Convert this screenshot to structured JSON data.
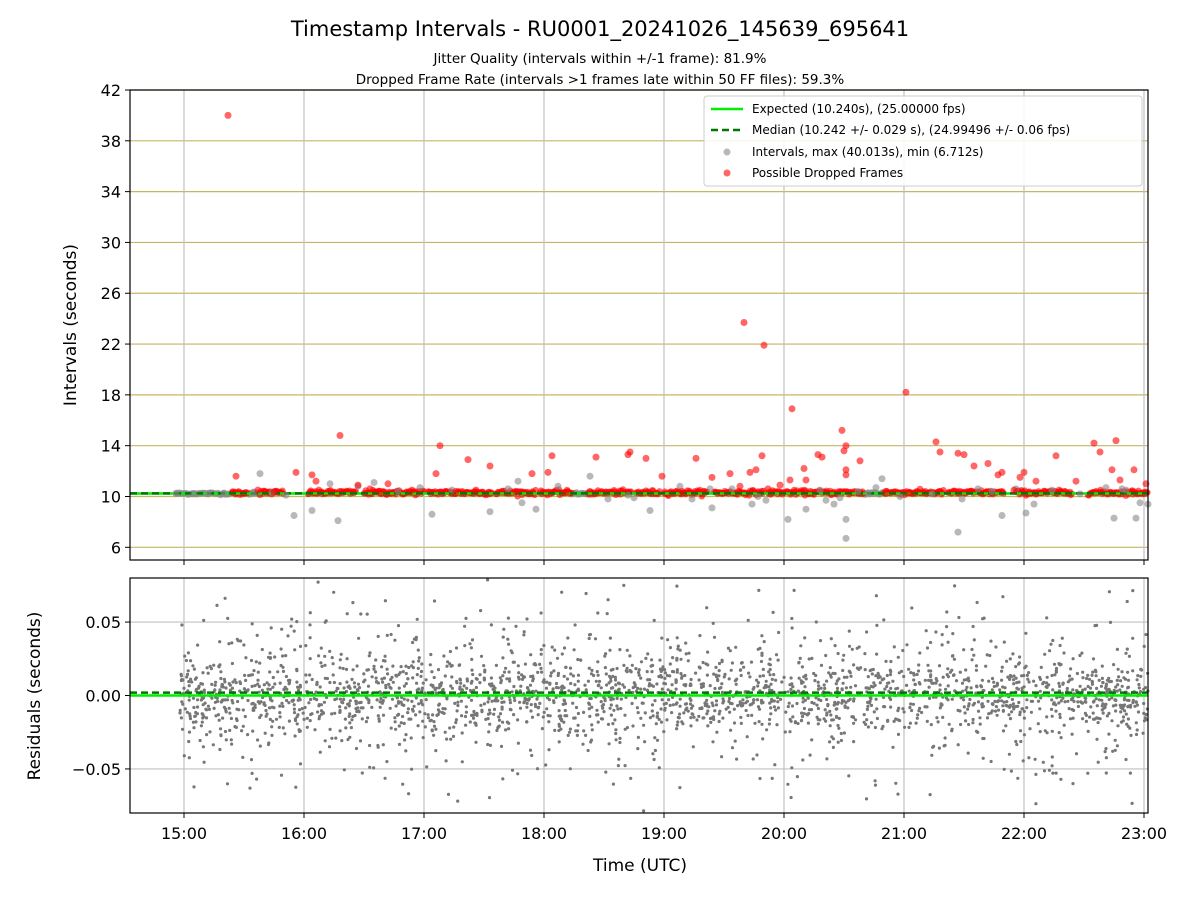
{
  "chart_data": [
    {
      "type": "scatter",
      "panel": "top",
      "title": "Timestamp Intervals - RU0001_20241026_145639_695641",
      "subtitle_lines": [
        "Jitter Quality (intervals within +/-1 frame): 81.9%",
        "Dropped Frame Rate (intervals >1 frames late within 50 FF files): 59.3%"
      ],
      "ylabel": "Intervals (seconds)",
      "xlim": [
        "14:33",
        "23:02"
      ],
      "ylim": [
        5.0,
        42.0
      ],
      "yticks": [
        6,
        10,
        14,
        18,
        22,
        26,
        30,
        34,
        38,
        42
      ],
      "xticks": [
        "15:00",
        "16:00",
        "17:00",
        "18:00",
        "19:00",
        "20:00",
        "21:00",
        "22:00",
        "23:00"
      ],
      "grid": true,
      "legend_position": "top-right",
      "legend": [
        "Expected (10.240s), (25.00000 fps)",
        "Median (10.242 +/- 0.029 s), (24.99496 +/- 0.06 fps)",
        "Intervals, max (40.013s), min (6.712s)",
        "Possible Dropped Frames"
      ],
      "expected_interval": 10.24,
      "median_interval": 10.242,
      "colors": {
        "expected": "#00ee00",
        "median": "#007700",
        "intervals": "#888888",
        "dropped": "#ff0000",
        "hgrid": "#c8b464",
        "vgrid": "#c0c0c0"
      },
      "series": [
        {
          "name": "Intervals, max (40.013s), min (6.712s)",
          "points": [
            [
              "14:56",
              10.24
            ],
            [
              "15:05",
              10.24
            ],
            [
              "15:12",
              10.24
            ],
            [
              "15:20",
              10.24
            ],
            [
              "15:35",
              10.35
            ],
            [
              "15:38",
              11.8
            ],
            [
              "15:44",
              10.3
            ],
            [
              "15:51",
              10.1
            ],
            [
              "15:55",
              8.5
            ],
            [
              "16:04",
              8.9
            ],
            [
              "16:13",
              11.0
            ],
            [
              "16:17",
              8.1
            ],
            [
              "16:27",
              10.8
            ],
            [
              "16:35",
              11.1
            ],
            [
              "16:47",
              10.4
            ],
            [
              "16:58",
              10.7
            ],
            [
              "17:04",
              8.6
            ],
            [
              "17:14",
              10.5
            ],
            [
              "17:33",
              8.8
            ],
            [
              "17:42",
              10.6
            ],
            [
              "17:47",
              11.2
            ],
            [
              "17:49",
              9.5
            ],
            [
              "17:56",
              9.0
            ],
            [
              "18:07",
              10.8
            ],
            [
              "18:23",
              11.6
            ],
            [
              "18:32",
              9.8
            ],
            [
              "18:42",
              10.1
            ],
            [
              "18:45",
              9.9
            ],
            [
              "18:53",
              8.9
            ],
            [
              "19:08",
              10.8
            ],
            [
              "19:14",
              9.8
            ],
            [
              "19:23",
              10.6
            ],
            [
              "19:24",
              9.1
            ],
            [
              "19:34",
              10.6
            ],
            [
              "19:44",
              9.4
            ],
            [
              "19:47",
              10.0
            ],
            [
              "19:51",
              9.7
            ],
            [
              "20:02",
              8.2
            ],
            [
              "20:11",
              9.0
            ],
            [
              "20:18",
              10.5
            ],
            [
              "20:21",
              9.7
            ],
            [
              "20:25",
              9.4
            ],
            [
              "20:28",
              9.9
            ],
            [
              "20:31",
              8.2
            ],
            [
              "20:31",
              6.7
            ],
            [
              "20:37",
              10.4
            ],
            [
              "20:42",
              10.3
            ],
            [
              "20:46",
              10.7
            ],
            [
              "20:49",
              11.4
            ],
            [
              "20:58",
              10.0
            ],
            [
              "21:14",
              10.2
            ],
            [
              "21:27",
              7.2
            ],
            [
              "21:29",
              9.8
            ],
            [
              "21:37",
              10.6
            ],
            [
              "21:44",
              10.4
            ],
            [
              "21:49",
              8.5
            ],
            [
              "21:56",
              10.6
            ],
            [
              "22:01",
              8.7
            ],
            [
              "22:05",
              9.4
            ],
            [
              "22:14",
              10.5
            ],
            [
              "22:28",
              10.2
            ],
            [
              "22:41",
              10.7
            ],
            [
              "22:45",
              8.3
            ],
            [
              "22:49",
              10.6
            ],
            [
              "22:51",
              10.5
            ],
            [
              "22:56",
              8.3
            ],
            [
              "22:58",
              9.5
            ],
            [
              "23:02",
              9.4
            ]
          ]
        },
        {
          "name": "Possible Dropped Frames",
          "points": [
            [
              "15:22",
              40.0
            ],
            [
              "15:26",
              11.6
            ],
            [
              "15:37",
              10.5
            ],
            [
              "15:45",
              10.3
            ],
            [
              "15:56",
              11.9
            ],
            [
              "16:04",
              11.7
            ],
            [
              "16:06",
              11.2
            ],
            [
              "16:18",
              14.8
            ],
            [
              "16:27",
              10.9
            ],
            [
              "16:33",
              10.6
            ],
            [
              "16:38",
              10.4
            ],
            [
              "16:42",
              11.0
            ],
            [
              "16:54",
              10.5
            ],
            [
              "17:06",
              11.8
            ],
            [
              "17:08",
              14.0
            ],
            [
              "17:16",
              10.4
            ],
            [
              "17:22",
              12.9
            ],
            [
              "17:26",
              10.5
            ],
            [
              "17:33",
              12.4
            ],
            [
              "17:46",
              10.4
            ],
            [
              "17:54",
              11.8
            ],
            [
              "18:02",
              11.9
            ],
            [
              "18:04",
              13.2
            ],
            [
              "18:11",
              10.3
            ],
            [
              "18:26",
              13.1
            ],
            [
              "18:42",
              13.3
            ],
            [
              "18:43",
              13.5
            ],
            [
              "18:51",
              13.0
            ],
            [
              "18:59",
              11.6
            ],
            [
              "19:09",
              10.4
            ],
            [
              "19:16",
              13.0
            ],
            [
              "19:24",
              11.5
            ],
            [
              "19:33",
              11.8
            ],
            [
              "19:38",
              10.8
            ],
            [
              "19:43",
              11.9
            ],
            [
              "19:46",
              12.1
            ],
            [
              "19:49",
              13.2
            ],
            [
              "19:52",
              10.6
            ],
            [
              "19:58",
              10.9
            ],
            [
              "20:03",
              11.3
            ],
            [
              "20:10",
              12.2
            ],
            [
              "20:11",
              11.3
            ],
            [
              "20:17",
              13.3
            ],
            [
              "20:19",
              13.1
            ],
            [
              "20:31",
              11.7
            ],
            [
              "20:31",
              12.1
            ],
            [
              "20:38",
              12.8
            ],
            [
              "20:51",
              10.4
            ],
            [
              "21:03",
              10.3
            ],
            [
              "21:16",
              14.3
            ],
            [
              "21:18",
              13.5
            ],
            [
              "21:27",
              13.4
            ],
            [
              "21:30",
              13.3
            ],
            [
              "21:35",
              12.4
            ],
            [
              "21:42",
              12.6
            ],
            [
              "21:47",
              11.7
            ],
            [
              "21:49",
              11.9
            ],
            [
              "21:55",
              10.5
            ],
            [
              "21:58",
              11.5
            ],
            [
              "22:00",
              11.9
            ],
            [
              "22:06",
              11.2
            ],
            [
              "22:16",
              13.2
            ],
            [
              "22:26",
              11.2
            ],
            [
              "22:35",
              14.2
            ],
            [
              "22:38",
              13.5
            ],
            [
              "22:44",
              12.1
            ],
            [
              "22:46",
              14.4
            ],
            [
              "22:48",
              11.3
            ],
            [
              "22:55",
              12.1
            ],
            [
              "23:01",
              11.0
            ]
          ],
          "spikes": [
            [
              "19:40",
              23.7
            ],
            [
              "19:50",
              21.9
            ],
            [
              "20:04",
              16.9
            ],
            [
              "20:29",
              15.2
            ],
            [
              "20:30",
              13.6
            ],
            [
              "20:31",
              14.0
            ],
            [
              "21:01",
              18.2
            ]
          ],
          "band": {
            "baseline": 10.24,
            "spread": 0.25,
            "segments": [
              [
                "15:24",
                "15:32"
              ],
              [
                "15:38",
                "15:50"
              ],
              [
                "16:02",
                "16:26"
              ],
              [
                "16:30",
                "17:00"
              ],
              [
                "17:02",
                "17:34"
              ],
              [
                "17:36",
                "17:56"
              ],
              [
                "17:58",
                "18:14"
              ],
              [
                "18:22",
                "18:44"
              ],
              [
                "18:46",
                "18:58"
              ],
              [
                "19:00",
                "19:22"
              ],
              [
                "19:25",
                "19:50"
              ],
              [
                "19:52",
                "20:40"
              ],
              [
                "20:50",
                "21:20"
              ],
              [
                "21:22",
                "21:50"
              ],
              [
                "21:56",
                "22:24"
              ],
              [
                "22:32",
                "23:02"
              ]
            ]
          }
        }
      ],
      "grey_band_segments": [
        [
          "14:56",
          "15:24"
        ],
        [
          "15:32",
          "15:38"
        ],
        [
          "18:14",
          "18:22"
        ],
        [
          "20:40",
          "20:50"
        ]
      ]
    },
    {
      "type": "scatter",
      "panel": "bottom",
      "xlabel": "Time (UTC)",
      "ylabel": "Residuals (seconds)",
      "xlim": [
        "14:33",
        "23:02"
      ],
      "ylim": [
        -0.08,
        0.08
      ],
      "yticks": [
        {
          "value": 0.05,
          "label": "0.05"
        },
        {
          "value": 0.0,
          "label": "0.00"
        },
        {
          "value": -0.05,
          "label": "−0.05"
        }
      ],
      "xticks": [
        "15:00",
        "16:00",
        "17:00",
        "18:00",
        "19:00",
        "20:00",
        "21:00",
        "22:00",
        "23:00"
      ],
      "grid": true,
      "expected_residual": 0.0,
      "median_residual": 0.002,
      "residuals": {
        "x_start": "14:58",
        "x_end": "23:02",
        "count": 2600,
        "core_sigma": 0.012,
        "wide_sigma": 0.03,
        "clip": 0.079,
        "color": "#777777"
      }
    }
  ]
}
